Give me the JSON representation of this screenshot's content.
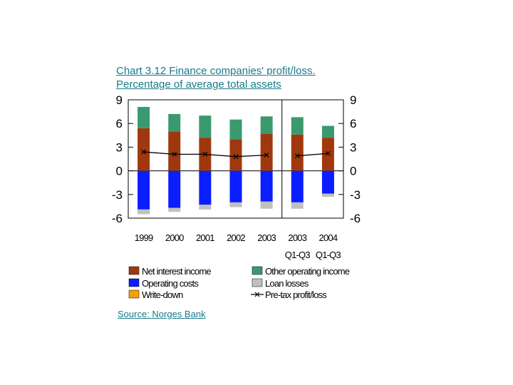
{
  "chart_data": {
    "type": "bar",
    "title_line1": "Chart 3.12 Finance companies' profit/loss.",
    "title_line2": "Percentage of average total assets",
    "source": "Source: Norges Bank",
    "categories": [
      [
        "1999",
        ""
      ],
      [
        "2000",
        ""
      ],
      [
        "2001",
        ""
      ],
      [
        "2002",
        ""
      ],
      [
        "2003",
        ""
      ],
      [
        "2003",
        "Q1-Q3"
      ],
      [
        "2004",
        "Q1-Q3"
      ]
    ],
    "ylim": [
      -6,
      9
    ],
    "yticks": [
      "9",
      "6",
      "3",
      "0",
      "-3",
      "-6"
    ],
    "ytick_values": [
      9,
      6,
      3,
      0,
      -3,
      -6
    ],
    "series": [
      {
        "name": "Net interest income",
        "color": "#a0380e",
        "values": [
          5.4,
          5.0,
          4.2,
          4.0,
          4.7,
          4.6,
          4.2
        ]
      },
      {
        "name": "Other operating income",
        "color": "#3a9a6e",
        "values": [
          2.7,
          2.2,
          2.8,
          2.5,
          2.2,
          2.2,
          1.5
        ]
      },
      {
        "name": "Operating costs",
        "color": "#0a1eff",
        "values": [
          -4.9,
          -4.7,
          -4.3,
          -4.0,
          -3.9,
          -4.0,
          -2.9
        ]
      },
      {
        "name": "Loan losses",
        "color": "#c0c0c0",
        "values": [
          -0.6,
          -0.5,
          -0.6,
          -0.6,
          -0.9,
          -0.8,
          -0.4
        ]
      },
      {
        "name": "Write-down",
        "color": "#f6a000",
        "values": [
          0,
          0,
          0,
          0,
          0,
          0,
          0
        ]
      },
      {
        "name": "Pre-tax profit/loss",
        "color": "#000000",
        "type": "line",
        "values": [
          2.4,
          2.1,
          2.1,
          1.8,
          2.0,
          1.9,
          2.2
        ]
      }
    ],
    "separator_after_index": 4
  }
}
